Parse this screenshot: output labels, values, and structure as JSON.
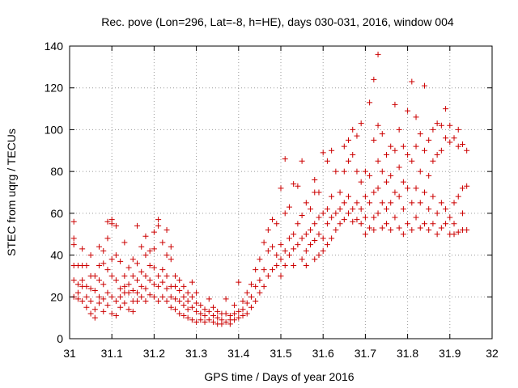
{
  "chart_data": {
    "type": "scatter",
    "title": "Rec. pove (Lon=296, Lat=-8, h=HE), days 030-031, 2016, window 004",
    "xlabel": "GPS time / Days of year 2016",
    "ylabel": "STEC from uqrg / TECUs",
    "xlim": [
      31,
      32
    ],
    "ylim": [
      0,
      140
    ],
    "xticks": [
      31,
      31.1,
      31.2,
      31.3,
      31.4,
      31.5,
      31.6,
      31.7,
      31.8,
      31.9,
      32
    ],
    "xtick_labels": [
      "31",
      "31.1",
      "31.2",
      "31.3",
      "31.4",
      "31.5",
      "31.6",
      "31.7",
      "31.8",
      "31.9",
      "32"
    ],
    "yticks": [
      0,
      20,
      40,
      60,
      80,
      100,
      120,
      140
    ],
    "ytick_labels": [
      "0",
      "20",
      "40",
      "60",
      "80",
      "100",
      "120",
      "140"
    ],
    "grid": true,
    "marker": "+",
    "series_color": "#cc0000",
    "points": [
      [
        31.01,
        56
      ],
      [
        31.01,
        48
      ],
      [
        31.01,
        45
      ],
      [
        31.01,
        35
      ],
      [
        31.01,
        28
      ],
      [
        31.01,
        20
      ],
      [
        31.02,
        35
      ],
      [
        31.02,
        26
      ],
      [
        31.02,
        22
      ],
      [
        31.02,
        19
      ],
      [
        31.03,
        43
      ],
      [
        31.03,
        35
      ],
      [
        31.03,
        28
      ],
      [
        31.03,
        25
      ],
      [
        31.03,
        18
      ],
      [
        31.04,
        35
      ],
      [
        31.04,
        25
      ],
      [
        31.04,
        20
      ],
      [
        31.04,
        15
      ],
      [
        31.05,
        40
      ],
      [
        31.05,
        30
      ],
      [
        31.05,
        24
      ],
      [
        31.05,
        18
      ],
      [
        31.05,
        12
      ],
      [
        31.06,
        30
      ],
      [
        31.06,
        23
      ],
      [
        31.06,
        14
      ],
      [
        31.06,
        10
      ],
      [
        31.07,
        44
      ],
      [
        31.07,
        35
      ],
      [
        31.07,
        28
      ],
      [
        31.07,
        20
      ],
      [
        31.07,
        17
      ],
      [
        31.08,
        42
      ],
      [
        31.08,
        36
      ],
      [
        31.08,
        26
      ],
      [
        31.08,
        19
      ],
      [
        31.08,
        13
      ],
      [
        31.09,
        56
      ],
      [
        31.09,
        48
      ],
      [
        31.09,
        33
      ],
      [
        31.09,
        22
      ],
      [
        31.09,
        16
      ],
      [
        31.1,
        57
      ],
      [
        31.1,
        55
      ],
      [
        31.1,
        38
      ],
      [
        31.1,
        30
      ],
      [
        31.1,
        20
      ],
      [
        31.1,
        12
      ],
      [
        31.11,
        54
      ],
      [
        31.11,
        40
      ],
      [
        31.11,
        28
      ],
      [
        31.11,
        18
      ],
      [
        31.11,
        11
      ],
      [
        31.12,
        37
      ],
      [
        31.12,
        24
      ],
      [
        31.12,
        20
      ],
      [
        31.12,
        15
      ],
      [
        31.13,
        46
      ],
      [
        31.13,
        30
      ],
      [
        31.13,
        25
      ],
      [
        31.13,
        22
      ],
      [
        31.13,
        17
      ],
      [
        31.14,
        34
      ],
      [
        31.14,
        26
      ],
      [
        31.14,
        22
      ],
      [
        31.14,
        14
      ],
      [
        31.15,
        38
      ],
      [
        31.15,
        30
      ],
      [
        31.15,
        23
      ],
      [
        31.15,
        18
      ],
      [
        31.15,
        13
      ],
      [
        31.16,
        54
      ],
      [
        31.16,
        36
      ],
      [
        31.16,
        28
      ],
      [
        31.16,
        22
      ],
      [
        31.16,
        18
      ],
      [
        31.17,
        44
      ],
      [
        31.17,
        32
      ],
      [
        31.17,
        25
      ],
      [
        31.17,
        20
      ],
      [
        31.18,
        49
      ],
      [
        31.18,
        40
      ],
      [
        31.18,
        30
      ],
      [
        31.18,
        24
      ],
      [
        31.18,
        18
      ],
      [
        31.19,
        42
      ],
      [
        31.19,
        35
      ],
      [
        31.19,
        28
      ],
      [
        31.19,
        21
      ],
      [
        31.2,
        51
      ],
      [
        31.2,
        43
      ],
      [
        31.2,
        34
      ],
      [
        31.2,
        26
      ],
      [
        31.2,
        20
      ],
      [
        31.21,
        57
      ],
      [
        31.21,
        54
      ],
      [
        31.21,
        30
      ],
      [
        31.21,
        25
      ],
      [
        31.21,
        18
      ],
      [
        31.22,
        46
      ],
      [
        31.22,
        33
      ],
      [
        31.22,
        27
      ],
      [
        31.22,
        20
      ],
      [
        31.23,
        52
      ],
      [
        31.23,
        40
      ],
      [
        31.23,
        30
      ],
      [
        31.23,
        24
      ],
      [
        31.23,
        18
      ],
      [
        31.24,
        44
      ],
      [
        31.24,
        38
      ],
      [
        31.24,
        25
      ],
      [
        31.24,
        20
      ],
      [
        31.24,
        15
      ],
      [
        31.25,
        30
      ],
      [
        31.25,
        25
      ],
      [
        31.25,
        19
      ],
      [
        31.25,
        14
      ],
      [
        31.26,
        28
      ],
      [
        31.26,
        23
      ],
      [
        31.26,
        18
      ],
      [
        31.26,
        12
      ],
      [
        31.27,
        25
      ],
      [
        31.27,
        20
      ],
      [
        31.27,
        16
      ],
      [
        31.27,
        11
      ],
      [
        31.28,
        22
      ],
      [
        31.28,
        18
      ],
      [
        31.28,
        14
      ],
      [
        31.28,
        10
      ],
      [
        31.29,
        27
      ],
      [
        31.29,
        20
      ],
      [
        31.29,
        15
      ],
      [
        31.29,
        9
      ],
      [
        31.3,
        22
      ],
      [
        31.3,
        17
      ],
      [
        31.3,
        13
      ],
      [
        31.3,
        8
      ],
      [
        31.31,
        16
      ],
      [
        31.31,
        12
      ],
      [
        31.31,
        9
      ],
      [
        31.32,
        14
      ],
      [
        31.32,
        11
      ],
      [
        31.32,
        8
      ],
      [
        31.33,
        19
      ],
      [
        31.33,
        13
      ],
      [
        31.33,
        9
      ],
      [
        31.34,
        15
      ],
      [
        31.34,
        11
      ],
      [
        31.34,
        8
      ],
      [
        31.35,
        13
      ],
      [
        31.35,
        10
      ],
      [
        31.35,
        7
      ],
      [
        31.36,
        12
      ],
      [
        31.36,
        9
      ],
      [
        31.36,
        7
      ],
      [
        31.37,
        19
      ],
      [
        31.37,
        12
      ],
      [
        31.37,
        8
      ],
      [
        31.38,
        11
      ],
      [
        31.38,
        9
      ],
      [
        31.38,
        7
      ],
      [
        31.39,
        16
      ],
      [
        31.39,
        12
      ],
      [
        31.39,
        9
      ],
      [
        31.4,
        27
      ],
      [
        31.4,
        13
      ],
      [
        31.4,
        10
      ],
      [
        31.41,
        18
      ],
      [
        31.41,
        14
      ],
      [
        31.41,
        11
      ],
      [
        31.42,
        22
      ],
      [
        31.42,
        17
      ],
      [
        31.42,
        12
      ],
      [
        31.43,
        26
      ],
      [
        31.43,
        20
      ],
      [
        31.43,
        15
      ],
      [
        31.44,
        33
      ],
      [
        31.44,
        25
      ],
      [
        31.44,
        18
      ],
      [
        31.45,
        38
      ],
      [
        31.45,
        28
      ],
      [
        31.45,
        22
      ],
      [
        31.46,
        46
      ],
      [
        31.46,
        33
      ],
      [
        31.46,
        25
      ],
      [
        31.47,
        52
      ],
      [
        31.47,
        42
      ],
      [
        31.47,
        30
      ],
      [
        31.48,
        57
      ],
      [
        31.48,
        44
      ],
      [
        31.48,
        33
      ],
      [
        31.49,
        55
      ],
      [
        31.49,
        40
      ],
      [
        31.49,
        35
      ],
      [
        31.5,
        72
      ],
      [
        31.5,
        45
      ],
      [
        31.5,
        38
      ],
      [
        31.5,
        30
      ],
      [
        31.51,
        86
      ],
      [
        31.51,
        60
      ],
      [
        31.51,
        42
      ],
      [
        31.51,
        35
      ],
      [
        31.52,
        63
      ],
      [
        31.52,
        48
      ],
      [
        31.52,
        40
      ],
      [
        31.53,
        74
      ],
      [
        31.53,
        50
      ],
      [
        31.53,
        43
      ],
      [
        31.53,
        35
      ],
      [
        31.54,
        73
      ],
      [
        31.54,
        55
      ],
      [
        31.54,
        45
      ],
      [
        31.55,
        85
      ],
      [
        31.55,
        59
      ],
      [
        31.55,
        48
      ],
      [
        31.55,
        38
      ],
      [
        31.56,
        65
      ],
      [
        31.56,
        50
      ],
      [
        31.56,
        42
      ],
      [
        31.56,
        35
      ],
      [
        31.57,
        62
      ],
      [
        31.57,
        52
      ],
      [
        31.57,
        45
      ],
      [
        31.58,
        76
      ],
      [
        31.58,
        70
      ],
      [
        31.58,
        55
      ],
      [
        31.58,
        47
      ],
      [
        31.58,
        38
      ],
      [
        31.59,
        70
      ],
      [
        31.59,
        58
      ],
      [
        31.59,
        50
      ],
      [
        31.59,
        40
      ],
      [
        31.6,
        89
      ],
      [
        31.6,
        60
      ],
      [
        31.6,
        48
      ],
      [
        31.6,
        42
      ],
      [
        31.61,
        85
      ],
      [
        31.61,
        62
      ],
      [
        31.61,
        55
      ],
      [
        31.61,
        45
      ],
      [
        31.62,
        90
      ],
      [
        31.62,
        68
      ],
      [
        31.62,
        58
      ],
      [
        31.62,
        48
      ],
      [
        31.63,
        80
      ],
      [
        31.63,
        60
      ],
      [
        31.63,
        52
      ],
      [
        31.64,
        70
      ],
      [
        31.64,
        62
      ],
      [
        31.64,
        55
      ],
      [
        31.65,
        92
      ],
      [
        31.65,
        80
      ],
      [
        31.65,
        65
      ],
      [
        31.65,
        57
      ],
      [
        31.66,
        95
      ],
      [
        31.66,
        85
      ],
      [
        31.66,
        68
      ],
      [
        31.66,
        60
      ],
      [
        31.67,
        100
      ],
      [
        31.67,
        88
      ],
      [
        31.67,
        62
      ],
      [
        31.67,
        56
      ],
      [
        31.68,
        97
      ],
      [
        31.68,
        80
      ],
      [
        31.68,
        65
      ],
      [
        31.68,
        57
      ],
      [
        31.69,
        103
      ],
      [
        31.69,
        75
      ],
      [
        31.69,
        62
      ],
      [
        31.69,
        55
      ],
      [
        31.7,
        80
      ],
      [
        31.7,
        68
      ],
      [
        31.7,
        58
      ],
      [
        31.7,
        50
      ],
      [
        31.71,
        113
      ],
      [
        31.71,
        78
      ],
      [
        31.71,
        65
      ],
      [
        31.71,
        53
      ],
      [
        31.72,
        124
      ],
      [
        31.72,
        95
      ],
      [
        31.72,
        70
      ],
      [
        31.72,
        58
      ],
      [
        31.72,
        52
      ],
      [
        31.73,
        136
      ],
      [
        31.73,
        102
      ],
      [
        31.73,
        85
      ],
      [
        31.73,
        72
      ],
      [
        31.73,
        60
      ],
      [
        31.74,
        98
      ],
      [
        31.74,
        80
      ],
      [
        31.74,
        65
      ],
      [
        31.74,
        53
      ],
      [
        31.75,
        88
      ],
      [
        31.75,
        75
      ],
      [
        31.75,
        62
      ],
      [
        31.75,
        55
      ],
      [
        31.76,
        92
      ],
      [
        31.76,
        78
      ],
      [
        31.76,
        65
      ],
      [
        31.76,
        52
      ],
      [
        31.77,
        112
      ],
      [
        31.77,
        90
      ],
      [
        31.77,
        70
      ],
      [
        31.77,
        58
      ],
      [
        31.78,
        100
      ],
      [
        31.78,
        82
      ],
      [
        31.78,
        68
      ],
      [
        31.78,
        53
      ],
      [
        31.79,
        92
      ],
      [
        31.79,
        75
      ],
      [
        31.79,
        62
      ],
      [
        31.79,
        50
      ],
      [
        31.8,
        109
      ],
      [
        31.8,
        88
      ],
      [
        31.8,
        72
      ],
      [
        31.8,
        55
      ],
      [
        31.81,
        123
      ],
      [
        31.81,
        85
      ],
      [
        31.81,
        65
      ],
      [
        31.81,
        52
      ],
      [
        31.82,
        106
      ],
      [
        31.82,
        92
      ],
      [
        31.82,
        72
      ],
      [
        31.82,
        58
      ],
      [
        31.83,
        98
      ],
      [
        31.83,
        80
      ],
      [
        31.83,
        65
      ],
      [
        31.83,
        53
      ],
      [
        31.84,
        121
      ],
      [
        31.84,
        90
      ],
      [
        31.84,
        70
      ],
      [
        31.84,
        55
      ],
      [
        31.85,
        95
      ],
      [
        31.85,
        78
      ],
      [
        31.85,
        62
      ],
      [
        31.85,
        52
      ],
      [
        31.86,
        100
      ],
      [
        31.86,
        85
      ],
      [
        31.86,
        68
      ],
      [
        31.86,
        55
      ],
      [
        31.87,
        103
      ],
      [
        31.87,
        88
      ],
      [
        31.87,
        60
      ],
      [
        31.87,
        50
      ],
      [
        31.88,
        102
      ],
      [
        31.88,
        90
      ],
      [
        31.88,
        65
      ],
      [
        31.88,
        53
      ],
      [
        31.89,
        110
      ],
      [
        31.89,
        96
      ],
      [
        31.89,
        62
      ],
      [
        31.89,
        55
      ],
      [
        31.9,
        102
      ],
      [
        31.9,
        94
      ],
      [
        31.9,
        58
      ],
      [
        31.9,
        50
      ],
      [
        31.91,
        96
      ],
      [
        31.91,
        65
      ],
      [
        31.91,
        55
      ],
      [
        31.91,
        50
      ],
      [
        31.92,
        100
      ],
      [
        31.92,
        92
      ],
      [
        31.92,
        68
      ],
      [
        31.92,
        51
      ],
      [
        31.93,
        93
      ],
      [
        31.93,
        72
      ],
      [
        31.93,
        60
      ],
      [
        31.93,
        52
      ],
      [
        31.94,
        90
      ],
      [
        31.94,
        73
      ],
      [
        31.94,
        52
      ]
    ]
  }
}
